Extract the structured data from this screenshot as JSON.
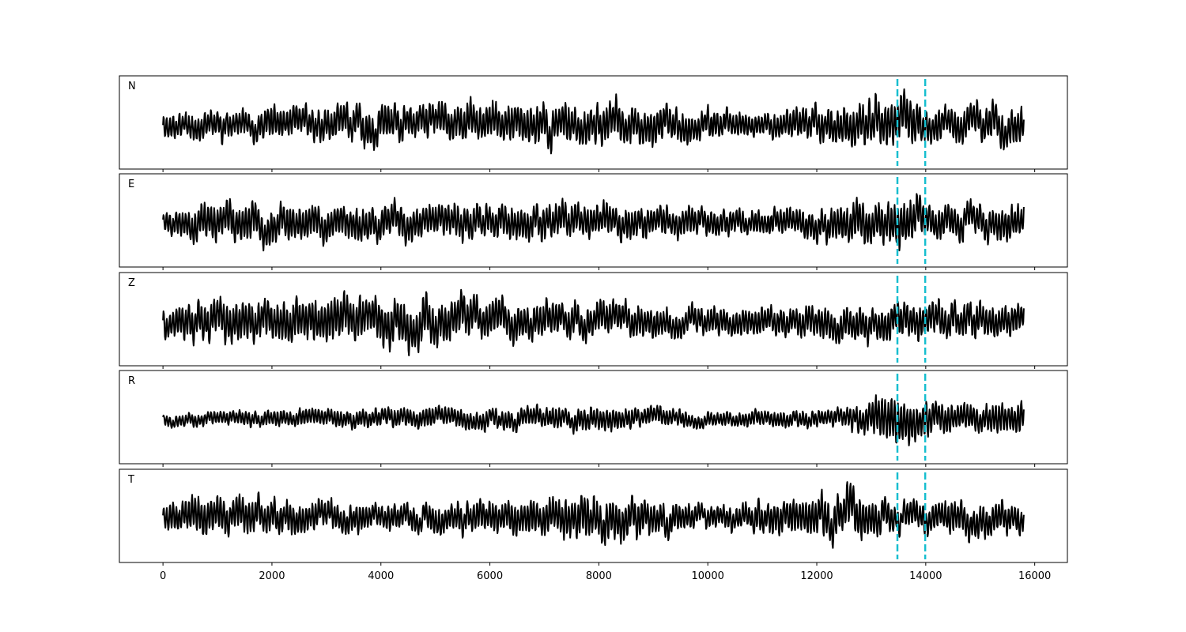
{
  "chart_data": {
    "type": "line",
    "title": "",
    "xlabel": "",
    "ylabel": "",
    "xlim": [
      -800,
      16600
    ],
    "xticks": [
      0,
      2000,
      4000,
      6000,
      8000,
      10000,
      12000,
      14000,
      16000
    ],
    "xtick_labels": [
      "0",
      "2000",
      "4000",
      "6000",
      "8000",
      "10000",
      "12000",
      "14000",
      "16000"
    ],
    "signal_x_range": [
      0,
      15800
    ],
    "yticks_visible": false,
    "grid": false,
    "line_color": "#000000",
    "marker_color": "#17becf",
    "marker_lines_x": [
      13480,
      13990
    ],
    "panels": [
      {
        "label": "N",
        "seed": 11,
        "envelope": [
          [
            0,
            0.55
          ],
          [
            1500,
            0.6
          ],
          [
            3200,
            0.75
          ],
          [
            8200,
            0.85
          ],
          [
            11000,
            0.5
          ],
          [
            13000,
            0.95
          ],
          [
            13600,
            1.0
          ],
          [
            14300,
            0.7
          ],
          [
            15800,
            0.9
          ]
        ]
      },
      {
        "label": "E",
        "seed": 23,
        "envelope": [
          [
            0,
            0.5
          ],
          [
            700,
            0.8
          ],
          [
            4800,
            0.7
          ],
          [
            7400,
            0.75
          ],
          [
            11000,
            0.5
          ],
          [
            13300,
            0.95
          ],
          [
            13600,
            1.0
          ],
          [
            14300,
            0.7
          ],
          [
            15800,
            0.75
          ]
        ]
      },
      {
        "label": "Z",
        "seed": 37,
        "envelope": [
          [
            0,
            0.6
          ],
          [
            600,
            0.85
          ],
          [
            4800,
            1.0
          ],
          [
            5700,
            0.85
          ],
          [
            8000,
            0.7
          ],
          [
            10500,
            0.55
          ],
          [
            12400,
            0.7
          ],
          [
            14000,
            0.75
          ],
          [
            15800,
            0.7
          ]
        ]
      },
      {
        "label": "R",
        "seed": 49,
        "envelope": [
          [
            0,
            0.25
          ],
          [
            2000,
            0.35
          ],
          [
            4000,
            0.4
          ],
          [
            8200,
            0.5
          ],
          [
            10000,
            0.3
          ],
          [
            12500,
            0.4
          ],
          [
            13100,
            0.95
          ],
          [
            13600,
            1.0
          ],
          [
            14300,
            0.6
          ],
          [
            15800,
            0.65
          ]
        ]
      },
      {
        "label": "T",
        "seed": 61,
        "envelope": [
          [
            0,
            0.55
          ],
          [
            700,
            0.85
          ],
          [
            4000,
            0.55
          ],
          [
            6000,
            0.7
          ],
          [
            8200,
            0.95
          ],
          [
            10000,
            0.45
          ],
          [
            12600,
            1.0
          ],
          [
            13500,
            0.6
          ],
          [
            15100,
            0.75
          ],
          [
            15800,
            0.6
          ]
        ]
      }
    ]
  }
}
